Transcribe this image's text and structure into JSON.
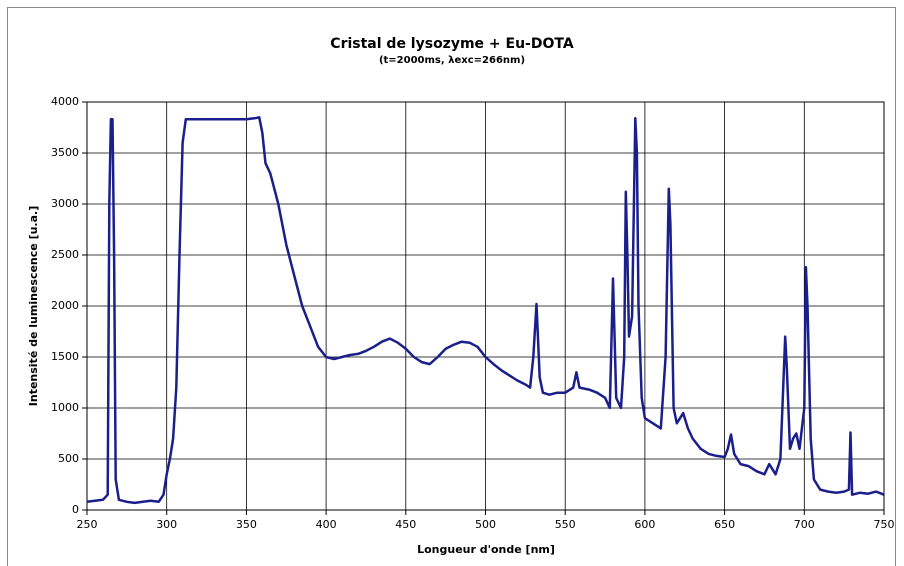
{
  "chart_data": {
    "type": "line",
    "title": "Cristal de lysozyme + Eu-DOTA",
    "subtitle": "(t=2000ms, λexc=266nm)",
    "x_label": "Longueur d'onde [nm]",
    "y_label": "Intensité de luminescence [u.a.]",
    "xlim": [
      250,
      750
    ],
    "xticks": [
      250,
      300,
      350,
      400,
      450,
      500,
      550,
      600,
      650,
      700,
      750
    ],
    "ylim": [
      0,
      4000
    ],
    "yticks": [
      0,
      500,
      1000,
      1500,
      2000,
      2500,
      3000,
      3500,
      4000
    ],
    "grid": true,
    "x": [
      250,
      255,
      260,
      263,
      264,
      265,
      266,
      267,
      268,
      270,
      275,
      280,
      285,
      290,
      295,
      298,
      300,
      302,
      304,
      306,
      308,
      310,
      312,
      320,
      330,
      340,
      350,
      355,
      358,
      360,
      362,
      365,
      370,
      375,
      380,
      385,
      390,
      395,
      400,
      405,
      410,
      415,
      420,
      425,
      430,
      435,
      440,
      445,
      450,
      455,
      460,
      465,
      470,
      475,
      480,
      485,
      490,
      495,
      500,
      505,
      510,
      515,
      520,
      525,
      528,
      530,
      532,
      534,
      536,
      540,
      545,
      550,
      555,
      557,
      559,
      565,
      570,
      575,
      578,
      580,
      582,
      585,
      587,
      588,
      589,
      590,
      592,
      594,
      595,
      596,
      598,
      600,
      605,
      610,
      613,
      615,
      616,
      618,
      620,
      624,
      627,
      630,
      635,
      640,
      645,
      650,
      652,
      654,
      656,
      660,
      665,
      670,
      675,
      678,
      680,
      682,
      685,
      688,
      689,
      691,
      693,
      695,
      697,
      700,
      701,
      702,
      704,
      706,
      710,
      715,
      720,
      725,
      728,
      729,
      730,
      735,
      740,
      745,
      750
    ],
    "series": [
      {
        "name": "Intensité",
        "color": "#1a1f8c",
        "values": [
          80,
          90,
          100,
          150,
          3000,
          3830,
          3830,
          2500,
          300,
          100,
          80,
          70,
          80,
          90,
          80,
          150,
          350,
          500,
          700,
          1200,
          2500,
          3600,
          3830,
          3830,
          3830,
          3830,
          3830,
          3840,
          3850,
          3700,
          3400,
          3300,
          3000,
          2600,
          2300,
          2000,
          1800,
          1600,
          1500,
          1480,
          1500,
          1520,
          1530,
          1560,
          1600,
          1650,
          1680,
          1640,
          1580,
          1500,
          1450,
          1430,
          1500,
          1580,
          1620,
          1650,
          1640,
          1600,
          1500,
          1430,
          1370,
          1320,
          1270,
          1230,
          1200,
          1500,
          2020,
          1300,
          1150,
          1130,
          1150,
          1150,
          1200,
          1350,
          1200,
          1180,
          1150,
          1100,
          1000,
          2270,
          1100,
          1000,
          1500,
          3120,
          2500,
          1700,
          1900,
          3840,
          3500,
          2000,
          1100,
          900,
          850,
          800,
          1500,
          3150,
          2800,
          1000,
          850,
          950,
          800,
          700,
          600,
          550,
          530,
          520,
          600,
          740,
          550,
          450,
          430,
          380,
          350,
          450,
          400,
          350,
          500,
          1700,
          1400,
          600,
          700,
          750,
          600,
          1000,
          2380,
          2000,
          700,
          300,
          200,
          180,
          170,
          180,
          200,
          760,
          150,
          170,
          160,
          180,
          150
        ]
      }
    ]
  }
}
